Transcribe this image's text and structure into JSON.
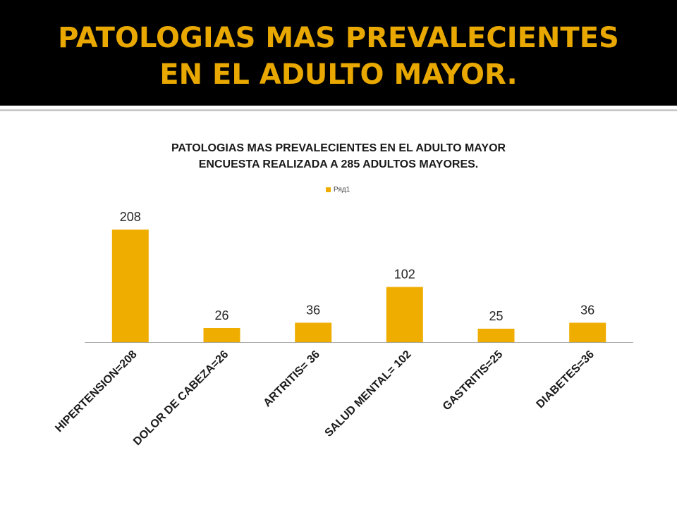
{
  "slide": {
    "title_line1": "PATOLOGIAS MAS PREVALECIENTES",
    "title_line2": "EN EL ADULTO MAYOR."
  },
  "colors": {
    "title_text": "#e8a800",
    "title_background": "#000000",
    "bar": "#efad00"
  },
  "chart_data": {
    "type": "bar",
    "title_line1": "PATOLOGIAS MAS PREVALECIENTES EN EL ADULTO MAYOR",
    "title_line2": "ENCUESTA REALIZADA A 285 ADULTOS MAYORES.",
    "legend_position": "top-center",
    "grid": false,
    "categories": [
      "HIPERTENSION=208",
      "DOLOR DE CABEZA=26",
      "ARTRITIS= 36",
      "SALUD MENTAL= 102",
      "GASTRITIS=25",
      "DIABETES=36"
    ],
    "series": [
      {
        "name": "Ряд1",
        "values": [
          208,
          26,
          36,
          102,
          25,
          36
        ]
      }
    ],
    "ylim": [
      0,
      208
    ]
  }
}
